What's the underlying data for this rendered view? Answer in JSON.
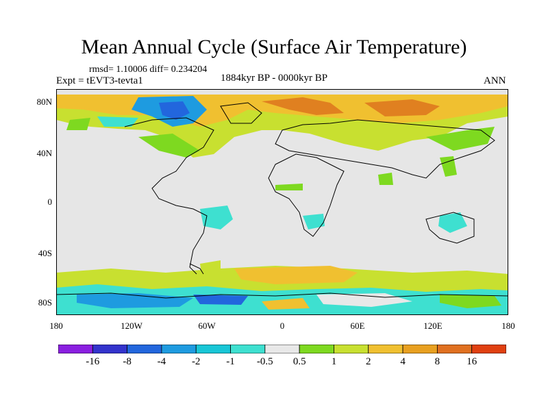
{
  "title": "Mean Annual Cycle (Surface Air Temperature)",
  "stats": "rmsd= 1.10006 diff= 0.234204",
  "experiment": "Expt = tEVT3-tevta1",
  "period": "1884kyr BP - 0000kyr BP",
  "season": "ANN",
  "lat_ticks": [
    "80N",
    "40N",
    "0",
    "40S",
    "80S"
  ],
  "lat_values": [
    80,
    40,
    0,
    -40,
    -80
  ],
  "lon_ticks": [
    "180",
    "120W",
    "60W",
    "0",
    "60E",
    "120E",
    "180"
  ],
  "lon_values": [
    -180,
    -120,
    -60,
    0,
    60,
    120,
    180
  ],
  "colorbar": {
    "colors": [
      "#8a1fe0",
      "#3333cc",
      "#2266dd",
      "#1e9be0",
      "#18c6d6",
      "#3ee0d0",
      "#e8e8e8",
      "#7ed920",
      "#c8e030",
      "#f0c030",
      "#e8a020",
      "#e07020",
      "#e04010"
    ],
    "labels": [
      "-16",
      "-8",
      "-4",
      "-2",
      "-1",
      "-0.5",
      "0.5",
      "1",
      "2",
      "4",
      "8",
      "16"
    ]
  }
}
